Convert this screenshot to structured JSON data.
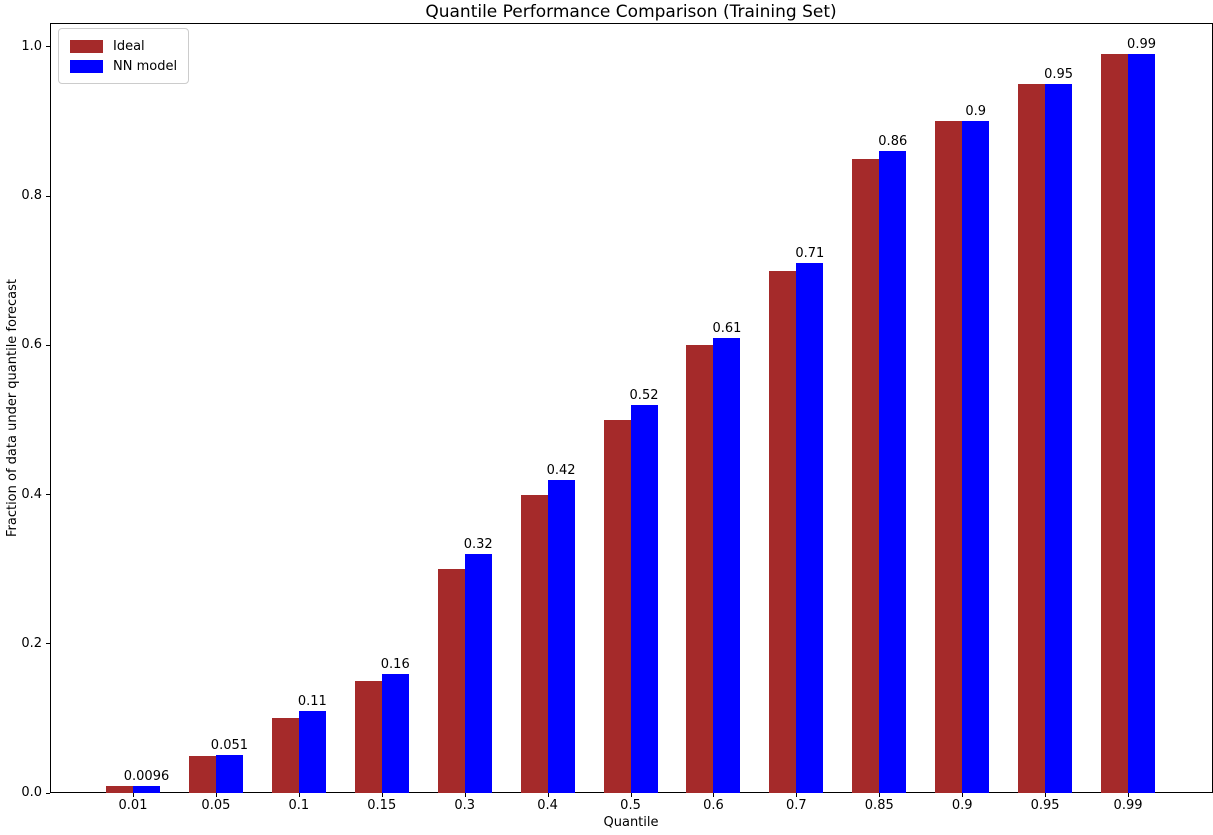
{
  "chart_data": {
    "type": "bar",
    "title": "Quantile Performance Comparison (Training Set)",
    "xlabel": "Quantile",
    "ylabel": "Fraction of data under quantile forecast",
    "categories": [
      "0.01",
      "0.05",
      "0.1",
      "0.15",
      "0.3",
      "0.4",
      "0.5",
      "0.6",
      "0.7",
      "0.85",
      "0.9",
      "0.95",
      "0.99"
    ],
    "series": [
      {
        "name": "Ideal",
        "color": "#a52a2a",
        "values": [
          0.01,
          0.05,
          0.1,
          0.15,
          0.3,
          0.4,
          0.5,
          0.6,
          0.7,
          0.85,
          0.9,
          0.95,
          0.99
        ]
      },
      {
        "name": "NN model",
        "color": "#0000ff",
        "values": [
          0.0096,
          0.051,
          0.11,
          0.16,
          0.32,
          0.42,
          0.52,
          0.61,
          0.71,
          0.86,
          0.9,
          0.95,
          0.99
        ]
      }
    ],
    "bar_labels": [
      "0.0096",
      "0.051",
      "0.11",
      "0.16",
      "0.32",
      "0.42",
      "0.52",
      "0.61",
      "0.71",
      "0.86",
      "0.9",
      "0.95",
      "0.99"
    ],
    "yticks": [
      0.0,
      0.2,
      0.4,
      0.6,
      0.8,
      1.0
    ],
    "ytick_labels": [
      "0.0",
      "0.2",
      "0.4",
      "0.6",
      "0.8",
      "1.0"
    ],
    "ylim": [
      0,
      1.032
    ],
    "legend": {
      "position": "upper left",
      "entries": [
        "Ideal",
        "NN model"
      ]
    },
    "grid": false
  }
}
